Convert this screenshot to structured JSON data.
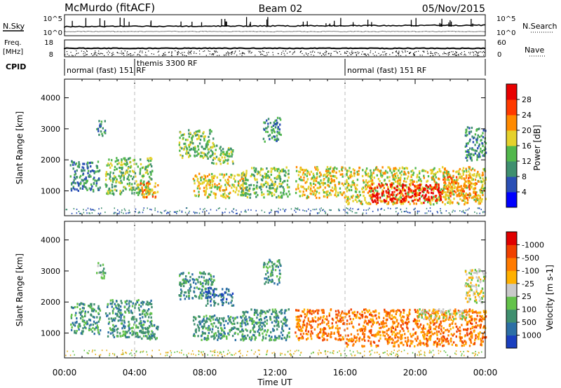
{
  "header": {
    "station": "McMurdo (fitACF)",
    "beam": "Beam 02",
    "date": "05/Nov/2015"
  },
  "panels": {
    "nsky_label": "N.Sky",
    "nsearch_label": "N.Search",
    "nsky_ticks": [
      "10^5",
      "10^0"
    ],
    "nsearch_ticks": [
      "10^5",
      "10^0"
    ],
    "freq_label_1": "Freq.",
    "freq_label_2": "[MHz]",
    "freq_ticks": [
      "18",
      "8"
    ],
    "nave_label": "Nave",
    "nave_ticks": [
      "60",
      "0"
    ],
    "cpid_label": "CPID",
    "cpid_segments": [
      {
        "label": "normal (fast) 151 RF",
        "start": 0.0
      },
      {
        "label": "themis 3300 RF",
        "start": 4.0
      },
      {
        "label": "normal (fast) 151 RF",
        "start": 16.0
      }
    ]
  },
  "chart_data": [
    {
      "type": "heatmap",
      "title": "",
      "ylabel": "Slant Range [km]",
      "xlabel": "",
      "x_range_hours": [
        0,
        24
      ],
      "ylim": [
        200,
        4600
      ],
      "yticks": [
        1000,
        2000,
        3000,
        4000
      ],
      "grid": false,
      "colorbar": {
        "label": "Power [dB]",
        "ticks": [
          "4",
          "8",
          "12",
          "16",
          "20",
          "24",
          "28"
        ],
        "colors": [
          "#0000ff",
          "#2a4fb5",
          "#3f8f6f",
          "#52b84c",
          "#e5d12c",
          "#ff8a00",
          "#ff3a00",
          "#e80000"
        ]
      },
      "echo_regions": [
        {
          "t0": 0.3,
          "t1": 2.0,
          "r0": 1000,
          "r1": 2000,
          "level": 2
        },
        {
          "t0": 1.8,
          "t1": 2.3,
          "r0": 2800,
          "r1": 3300,
          "level": 2
        },
        {
          "t0": 2.3,
          "t1": 5.0,
          "r0": 900,
          "r1": 2100,
          "level": 3
        },
        {
          "t0": 4.3,
          "t1": 5.3,
          "r0": 800,
          "r1": 1300,
          "level": 5
        },
        {
          "t0": 6.5,
          "t1": 8.5,
          "r0": 2100,
          "r1": 3000,
          "level": 3
        },
        {
          "t0": 8.0,
          "t1": 9.6,
          "r0": 1900,
          "r1": 2500,
          "level": 3
        },
        {
          "t0": 7.3,
          "t1": 10.3,
          "r0": 800,
          "r1": 1600,
          "level": 4
        },
        {
          "t0": 10.0,
          "t1": 12.8,
          "r0": 800,
          "r1": 1800,
          "level": 3
        },
        {
          "t0": 11.3,
          "t1": 12.3,
          "r0": 2600,
          "r1": 3400,
          "level": 2
        },
        {
          "t0": 13.1,
          "t1": 16.0,
          "r0": 800,
          "r1": 1800,
          "level": 4
        },
        {
          "t0": 16.0,
          "t1": 24.0,
          "r0": 600,
          "r1": 1800,
          "level": 4
        },
        {
          "t0": 17.3,
          "t1": 21.5,
          "r0": 650,
          "r1": 1250,
          "level": 7
        },
        {
          "t0": 21.5,
          "t1": 23.5,
          "r0": 800,
          "r1": 1500,
          "level": 5
        },
        {
          "t0": 22.8,
          "t1": 24.0,
          "r0": 2000,
          "r1": 3100,
          "level": 2
        }
      ]
    },
    {
      "type": "heatmap",
      "title": "",
      "ylabel": "Slant Range [km]",
      "xlabel": "Time UT",
      "x_range_hours": [
        0,
        24
      ],
      "xticks": [
        "00:00",
        "04:00",
        "08:00",
        "12:00",
        "16:00",
        "20:00",
        "00:00"
      ],
      "ylim": [
        200,
        4600
      ],
      "yticks": [
        1000,
        2000,
        3000,
        4000
      ],
      "grid": false,
      "colorbar": {
        "label": "Velocity [m s-1]",
        "ticks": [
          "1000",
          "500",
          "100",
          "25",
          "-25",
          "-100",
          "-500",
          "-1000"
        ],
        "colors": [
          "#1a3fbf",
          "#2c6fa5",
          "#3f8f6f",
          "#63c24a",
          "#c9c9c9",
          "#ffb000",
          "#ff7a00",
          "#f04000",
          "#e00000"
        ]
      },
      "echo_regions": [
        {
          "t0": 0.3,
          "t1": 2.0,
          "r0": 1000,
          "r1": 2000,
          "level": 2
        },
        {
          "t0": 1.8,
          "t1": 2.3,
          "r0": 2800,
          "r1": 3300,
          "level": 3
        },
        {
          "t0": 2.3,
          "t1": 5.0,
          "r0": 900,
          "r1": 2100,
          "level": 2
        },
        {
          "t0": 4.3,
          "t1": 5.3,
          "r0": 800,
          "r1": 1300,
          "level": 2
        },
        {
          "t0": 6.5,
          "t1": 8.5,
          "r0": 2100,
          "r1": 3000,
          "level": 2
        },
        {
          "t0": 8.0,
          "t1": 9.6,
          "r0": 1900,
          "r1": 2500,
          "level": 1
        },
        {
          "t0": 7.3,
          "t1": 10.3,
          "r0": 800,
          "r1": 1600,
          "level": 2
        },
        {
          "t0": 10.0,
          "t1": 12.8,
          "r0": 800,
          "r1": 1800,
          "level": 2
        },
        {
          "t0": 11.3,
          "t1": 12.3,
          "r0": 2600,
          "r1": 3400,
          "level": 2
        },
        {
          "t0": 13.1,
          "t1": 16.0,
          "r0": 800,
          "r1": 1800,
          "level": 6
        },
        {
          "t0": 16.0,
          "t1": 24.0,
          "r0": 600,
          "r1": 1800,
          "level": 6
        },
        {
          "t0": 20.0,
          "t1": 23.0,
          "r0": 1450,
          "r1": 1800,
          "level": 4
        },
        {
          "t0": 22.8,
          "t1": 24.0,
          "r0": 2000,
          "r1": 3100,
          "level": 4
        }
      ]
    }
  ]
}
